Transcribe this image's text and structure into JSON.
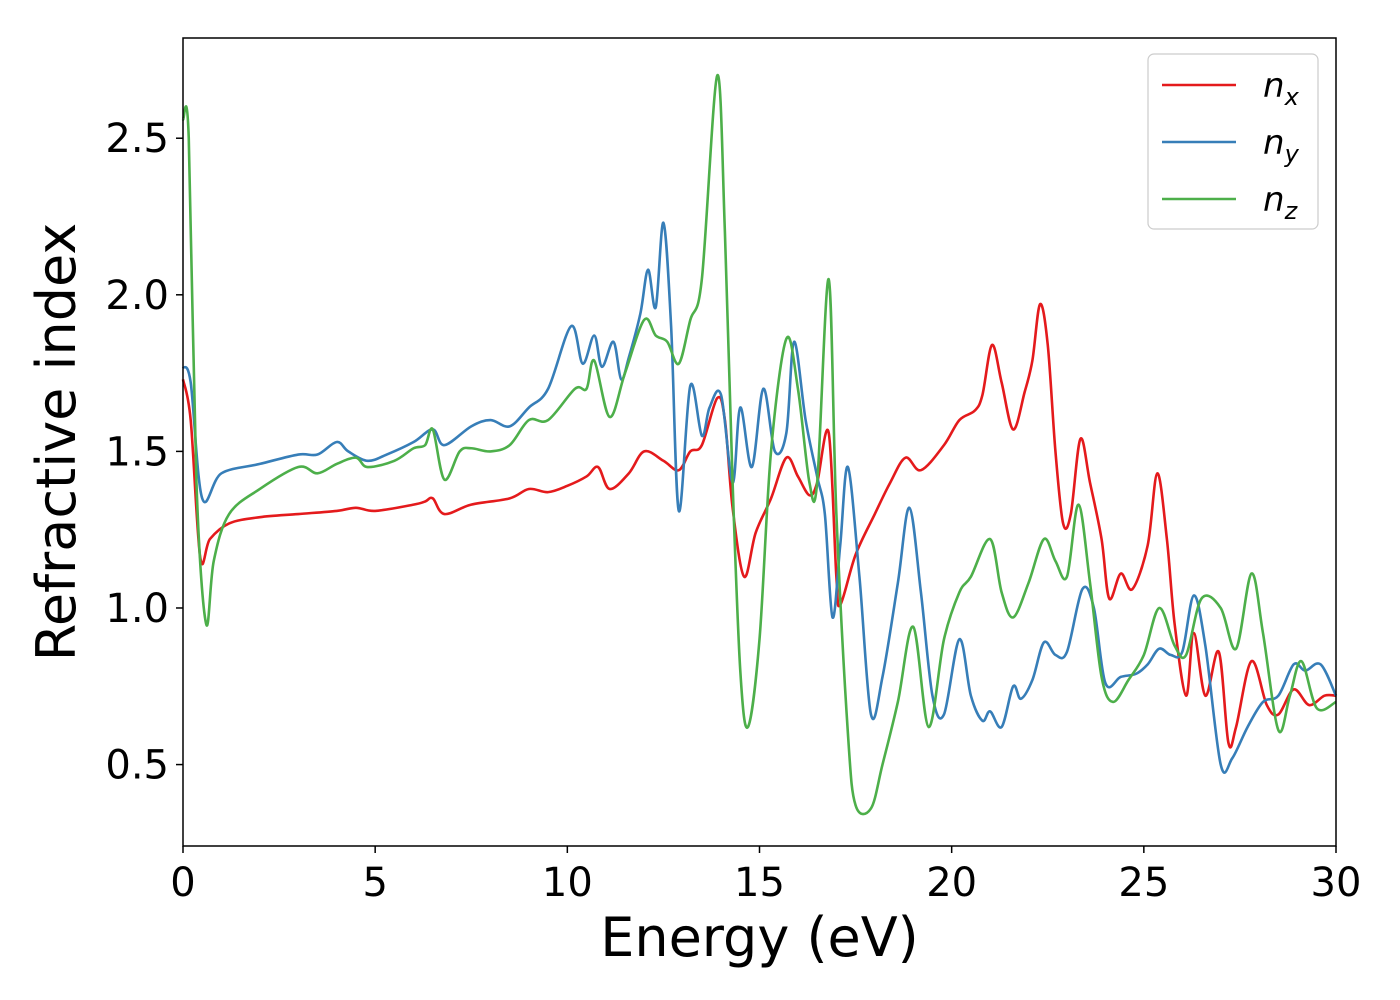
{
  "chart_data": {
    "type": "line",
    "title": "",
    "xlabel": "Energy (eV)",
    "ylabel": "Refractive index",
    "xlim": [
      0,
      30
    ],
    "ylim": [
      0.24,
      2.82
    ],
    "xticks": [
      0,
      5,
      10,
      15,
      20,
      25,
      30
    ],
    "xtick_labels": [
      "0",
      "5",
      "10",
      "15",
      "20",
      "25",
      "30"
    ],
    "yticks": [
      0.5,
      1.0,
      1.5,
      2.0,
      2.5
    ],
    "ytick_labels": [
      "0.5",
      "1.0",
      "1.5",
      "2.0",
      "2.5"
    ],
    "grid": false,
    "legend_position": "top-right",
    "series": [
      {
        "name": "n",
        "subscript": "x",
        "color": "#e41a1c",
        "points": [
          [
            0,
            1.73
          ],
          [
            0.2,
            1.6
          ],
          [
            0.45,
            1.16
          ],
          [
            0.7,
            1.22
          ],
          [
            1.2,
            1.27
          ],
          [
            2,
            1.29
          ],
          [
            3,
            1.3
          ],
          [
            4,
            1.31
          ],
          [
            4.5,
            1.32
          ],
          [
            5,
            1.31
          ],
          [
            6,
            1.33
          ],
          [
            6.3,
            1.34
          ],
          [
            6.5,
            1.35
          ],
          [
            6.8,
            1.3
          ],
          [
            7.5,
            1.33
          ],
          [
            8.5,
            1.35
          ],
          [
            9,
            1.38
          ],
          [
            9.5,
            1.37
          ],
          [
            10,
            1.39
          ],
          [
            10.5,
            1.42
          ],
          [
            10.8,
            1.45
          ],
          [
            11.1,
            1.38
          ],
          [
            11.6,
            1.43
          ],
          [
            12,
            1.5
          ],
          [
            12.5,
            1.47
          ],
          [
            12.9,
            1.44
          ],
          [
            13.2,
            1.5
          ],
          [
            13.5,
            1.52
          ],
          [
            13.9,
            1.67
          ],
          [
            14.1,
            1.6
          ],
          [
            14.3,
            1.32
          ],
          [
            14.6,
            1.1
          ],
          [
            14.9,
            1.24
          ],
          [
            15.3,
            1.35
          ],
          [
            15.7,
            1.48
          ],
          [
            16,
            1.42
          ],
          [
            16.3,
            1.36
          ],
          [
            16.5,
            1.4
          ],
          [
            16.8,
            1.56
          ],
          [
            17,
            1.1
          ],
          [
            17.1,
            1.01
          ],
          [
            17.5,
            1.17
          ],
          [
            18,
            1.3
          ],
          [
            18.4,
            1.4
          ],
          [
            18.8,
            1.48
          ],
          [
            19.2,
            1.44
          ],
          [
            19.8,
            1.52
          ],
          [
            20.2,
            1.6
          ],
          [
            20.6,
            1.63
          ],
          [
            20.8,
            1.68
          ],
          [
            21.05,
            1.84
          ],
          [
            21.3,
            1.72
          ],
          [
            21.6,
            1.57
          ],
          [
            21.9,
            1.69
          ],
          [
            22.1,
            1.79
          ],
          [
            22.3,
            1.97
          ],
          [
            22.5,
            1.84
          ],
          [
            22.7,
            1.5
          ],
          [
            22.9,
            1.27
          ],
          [
            23.1,
            1.3
          ],
          [
            23.35,
            1.54
          ],
          [
            23.6,
            1.4
          ],
          [
            23.9,
            1.22
          ],
          [
            24.1,
            1.03
          ],
          [
            24.4,
            1.11
          ],
          [
            24.7,
            1.06
          ],
          [
            25.1,
            1.2
          ],
          [
            25.35,
            1.43
          ],
          [
            25.6,
            1.22
          ],
          [
            25.8,
            0.95
          ],
          [
            26.1,
            0.72
          ],
          [
            26.3,
            0.92
          ],
          [
            26.6,
            0.72
          ],
          [
            26.95,
            0.86
          ],
          [
            27.2,
            0.57
          ],
          [
            27.4,
            0.62
          ],
          [
            27.8,
            0.83
          ],
          [
            28.2,
            0.69
          ],
          [
            28.5,
            0.66
          ],
          [
            28.9,
            0.74
          ],
          [
            29.3,
            0.69
          ],
          [
            29.7,
            0.72
          ],
          [
            30,
            0.72
          ]
        ]
      },
      {
        "name": "n",
        "subscript": "y",
        "color": "#377eb8",
        "points": [
          [
            0,
            1.77
          ],
          [
            0.2,
            1.72
          ],
          [
            0.5,
            1.35
          ],
          [
            1,
            1.43
          ],
          [
            2,
            1.46
          ],
          [
            3,
            1.49
          ],
          [
            3.5,
            1.49
          ],
          [
            4,
            1.53
          ],
          [
            4.3,
            1.5
          ],
          [
            4.8,
            1.47
          ],
          [
            5.3,
            1.49
          ],
          [
            6,
            1.53
          ],
          [
            6.5,
            1.57
          ],
          [
            6.8,
            1.52
          ],
          [
            7.5,
            1.58
          ],
          [
            8,
            1.6
          ],
          [
            8.5,
            1.58
          ],
          [
            9,
            1.64
          ],
          [
            9.5,
            1.7
          ],
          [
            10.1,
            1.9
          ],
          [
            10.4,
            1.78
          ],
          [
            10.7,
            1.87
          ],
          [
            10.9,
            1.77
          ],
          [
            11.2,
            1.85
          ],
          [
            11.4,
            1.73
          ],
          [
            11.6,
            1.8
          ],
          [
            11.9,
            1.94
          ],
          [
            12.1,
            2.08
          ],
          [
            12.3,
            1.96
          ],
          [
            12.5,
            2.23
          ],
          [
            12.7,
            1.9
          ],
          [
            12.9,
            1.31
          ],
          [
            13.2,
            1.71
          ],
          [
            13.5,
            1.55
          ],
          [
            13.7,
            1.64
          ],
          [
            14,
            1.68
          ],
          [
            14.3,
            1.4
          ],
          [
            14.5,
            1.64
          ],
          [
            14.8,
            1.45
          ],
          [
            15.1,
            1.7
          ],
          [
            15.4,
            1.5
          ],
          [
            15.7,
            1.56
          ],
          [
            15.9,
            1.85
          ],
          [
            16.2,
            1.6
          ],
          [
            16.5,
            1.42
          ],
          [
            16.7,
            1.3
          ],
          [
            16.9,
            0.97
          ],
          [
            17.1,
            1.2
          ],
          [
            17.3,
            1.45
          ],
          [
            17.6,
            1.1
          ],
          [
            17.9,
            0.66
          ],
          [
            18.2,
            0.78
          ],
          [
            18.6,
            1.08
          ],
          [
            18.9,
            1.32
          ],
          [
            19.2,
            1.05
          ],
          [
            19.5,
            0.72
          ],
          [
            19.8,
            0.66
          ],
          [
            20.2,
            0.9
          ],
          [
            20.5,
            0.72
          ],
          [
            20.8,
            0.64
          ],
          [
            21,
            0.67
          ],
          [
            21.3,
            0.62
          ],
          [
            21.6,
            0.75
          ],
          [
            21.8,
            0.71
          ],
          [
            22.1,
            0.77
          ],
          [
            22.4,
            0.89
          ],
          [
            22.7,
            0.85
          ],
          [
            23,
            0.86
          ],
          [
            23.4,
            1.06
          ],
          [
            23.7,
            1.0
          ],
          [
            24,
            0.76
          ],
          [
            24.4,
            0.78
          ],
          [
            24.8,
            0.79
          ],
          [
            25.1,
            0.82
          ],
          [
            25.4,
            0.87
          ],
          [
            25.7,
            0.85
          ],
          [
            26,
            0.86
          ],
          [
            26.3,
            1.04
          ],
          [
            26.6,
            0.88
          ],
          [
            27,
            0.5
          ],
          [
            27.3,
            0.52
          ],
          [
            27.7,
            0.62
          ],
          [
            28.1,
            0.7
          ],
          [
            28.5,
            0.72
          ],
          [
            28.9,
            0.82
          ],
          [
            29.2,
            0.8
          ],
          [
            29.6,
            0.82
          ],
          [
            30,
            0.72
          ]
        ]
      },
      {
        "name": "n",
        "subscript": "z",
        "color": "#4daf4a",
        "points": [
          [
            0,
            2.56
          ],
          [
            0.15,
            2.5
          ],
          [
            0.35,
            1.4
          ],
          [
            0.6,
            0.95
          ],
          [
            0.8,
            1.15
          ],
          [
            1.2,
            1.3
          ],
          [
            2,
            1.38
          ],
          [
            3,
            1.45
          ],
          [
            3.5,
            1.43
          ],
          [
            4,
            1.46
          ],
          [
            4.5,
            1.48
          ],
          [
            4.8,
            1.45
          ],
          [
            5.5,
            1.47
          ],
          [
            6,
            1.51
          ],
          [
            6.3,
            1.52
          ],
          [
            6.5,
            1.57
          ],
          [
            6.8,
            1.41
          ],
          [
            7.2,
            1.5
          ],
          [
            7.5,
            1.51
          ],
          [
            8,
            1.5
          ],
          [
            8.5,
            1.52
          ],
          [
            9,
            1.6
          ],
          [
            9.5,
            1.6
          ],
          [
            10.2,
            1.7
          ],
          [
            10.5,
            1.7
          ],
          [
            10.7,
            1.79
          ],
          [
            11.1,
            1.61
          ],
          [
            11.5,
            1.75
          ],
          [
            12,
            1.92
          ],
          [
            12.3,
            1.87
          ],
          [
            12.6,
            1.85
          ],
          [
            12.9,
            1.78
          ],
          [
            13.2,
            1.92
          ],
          [
            13.5,
            2.05
          ],
          [
            13.9,
            2.7
          ],
          [
            14.1,
            2.2
          ],
          [
            14.3,
            1.4
          ],
          [
            14.5,
            0.8
          ],
          [
            14.7,
            0.62
          ],
          [
            15,
            0.9
          ],
          [
            15.3,
            1.5
          ],
          [
            15.7,
            1.86
          ],
          [
            16,
            1.7
          ],
          [
            16.3,
            1.4
          ],
          [
            16.5,
            1.4
          ],
          [
            16.8,
            2.05
          ],
          [
            17,
            1.3
          ],
          [
            17.3,
            0.6
          ],
          [
            17.5,
            0.37
          ],
          [
            17.9,
            0.36
          ],
          [
            18.2,
            0.5
          ],
          [
            18.6,
            0.7
          ],
          [
            19,
            0.94
          ],
          [
            19.4,
            0.62
          ],
          [
            19.8,
            0.9
          ],
          [
            20.2,
            1.05
          ],
          [
            20.5,
            1.1
          ],
          [
            21,
            1.22
          ],
          [
            21.3,
            1.05
          ],
          [
            21.6,
            0.97
          ],
          [
            22,
            1.08
          ],
          [
            22.4,
            1.22
          ],
          [
            22.7,
            1.15
          ],
          [
            23,
            1.1
          ],
          [
            23.3,
            1.33
          ],
          [
            23.6,
            1.08
          ],
          [
            23.9,
            0.78
          ],
          [
            24.2,
            0.7
          ],
          [
            24.6,
            0.77
          ],
          [
            25,
            0.85
          ],
          [
            25.4,
            1.0
          ],
          [
            25.8,
            0.88
          ],
          [
            26.1,
            0.85
          ],
          [
            26.5,
            1.03
          ],
          [
            27,
            1.0
          ],
          [
            27.4,
            0.87
          ],
          [
            27.8,
            1.11
          ],
          [
            28.1,
            0.92
          ],
          [
            28.5,
            0.61
          ],
          [
            28.8,
            0.72
          ],
          [
            29.1,
            0.83
          ],
          [
            29.5,
            0.68
          ],
          [
            30,
            0.7
          ]
        ]
      }
    ]
  }
}
